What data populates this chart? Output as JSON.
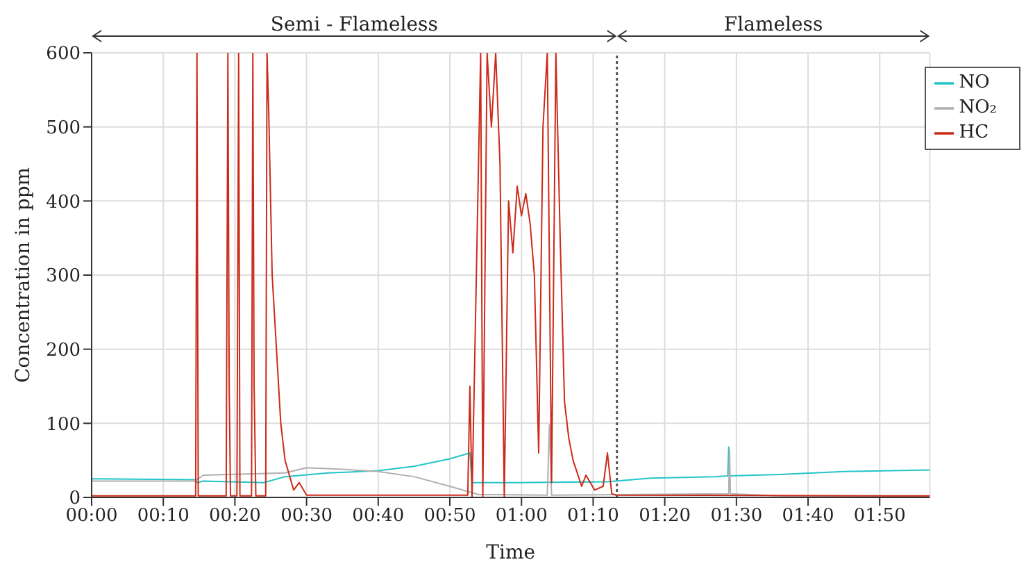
{
  "chart_data": {
    "type": "line",
    "xlabel": "Time",
    "ylabel": "Concentration in ppm",
    "xlim": [
      0,
      1.95
    ],
    "xticks": [
      {
        "value": 0,
        "label": "00:00"
      },
      {
        "value": 0.1667,
        "label": "00:10"
      },
      {
        "value": 0.3333,
        "label": "00:20"
      },
      {
        "value": 0.5,
        "label": "00:30"
      },
      {
        "value": 0.6667,
        "label": "00:40"
      },
      {
        "value": 0.8333,
        "label": "00:50"
      },
      {
        "value": 1,
        "label": "01:00"
      },
      {
        "value": 1.1667,
        "label": "01:10"
      },
      {
        "value": 1.3333,
        "label": "01:20"
      },
      {
        "value": 1.5,
        "label": "01:30"
      },
      {
        "value": 1.6667,
        "label": "01:40"
      },
      {
        "value": 1.8333,
        "label": "01:50"
      }
    ],
    "ylim": [
      0,
      600
    ],
    "yticks": [
      0,
      100,
      200,
      300,
      400,
      500,
      600
    ],
    "grid": true,
    "legend": "top right",
    "marker": "none",
    "line_style": "solid",
    "ref_lines": [
      {
        "axis": "x",
        "value": 1.222,
        "line_style": "dotted",
        "color": "#555555"
      }
    ],
    "annotations": [
      "Semi - Flameless",
      "Flameless"
    ],
    "series": [
      {
        "name": "NO",
        "color": "#22c5c8",
        "x": [
          0,
          0.24,
          0.245,
          0.26,
          0.4,
          0.45,
          0.55,
          0.667,
          0.75,
          0.833,
          0.88,
          0.885,
          1.0,
          1.2,
          1.3,
          1.45,
          1.48,
          1.482,
          1.484,
          1.6,
          1.75,
          1.95
        ],
        "values": [
          25,
          24,
          20,
          22,
          20,
          28,
          33,
          36,
          42,
          52,
          60,
          20,
          20,
          21,
          26,
          28,
          29,
          68,
          29,
          31,
          35,
          37
        ]
      },
      {
        "name": "NO₂",
        "color": "#b0b0b0",
        "x": [
          0,
          0.24,
          0.26,
          0.45,
          0.5,
          0.583,
          0.667,
          0.75,
          0.833,
          0.9,
          1.06,
          1.065,
          1.07,
          1.482,
          1.484,
          1.486,
          1.6,
          1.95
        ],
        "values": [
          22,
          22,
          30,
          33,
          40,
          38,
          35,
          28,
          15,
          4,
          3,
          98,
          3,
          5,
          65,
          5,
          2,
          1
        ]
      },
      {
        "name": "HC",
        "color": "#cc2a1a",
        "x": [
          0,
          0.242,
          0.245,
          0.248,
          0.313,
          0.317,
          0.32,
          0.323,
          0.338,
          0.342,
          0.345,
          0.372,
          0.375,
          0.378,
          0.382,
          0.405,
          0.408,
          0.412,
          0.42,
          0.43,
          0.44,
          0.45,
          0.46,
          0.47,
          0.483,
          0.5,
          0.875,
          0.88,
          0.885,
          0.895,
          0.905,
          0.91,
          0.92,
          0.93,
          0.94,
          0.95,
          0.96,
          0.97,
          0.98,
          0.99,
          1.0,
          1.01,
          1.02,
          1.03,
          1.04,
          1.05,
          1.06,
          1.07,
          1.08,
          1.09,
          1.1,
          1.11,
          1.12,
          1.14,
          1.15,
          1.17,
          1.19,
          1.2,
          1.21,
          1.22,
          1.95
        ],
        "values": [
          2,
          2,
          600,
          2,
          2,
          600,
          150,
          2,
          2,
          600,
          2,
          2,
          600,
          150,
          2,
          2,
          600,
          520,
          300,
          200,
          100,
          50,
          30,
          10,
          20,
          3,
          3,
          150,
          0,
          300,
          600,
          0,
          600,
          500,
          600,
          450,
          0,
          400,
          330,
          420,
          380,
          410,
          370,
          300,
          60,
          500,
          600,
          20,
          600,
          350,
          130,
          80,
          50,
          15,
          30,
          10,
          15,
          60,
          5,
          3,
          2
        ]
      }
    ]
  }
}
